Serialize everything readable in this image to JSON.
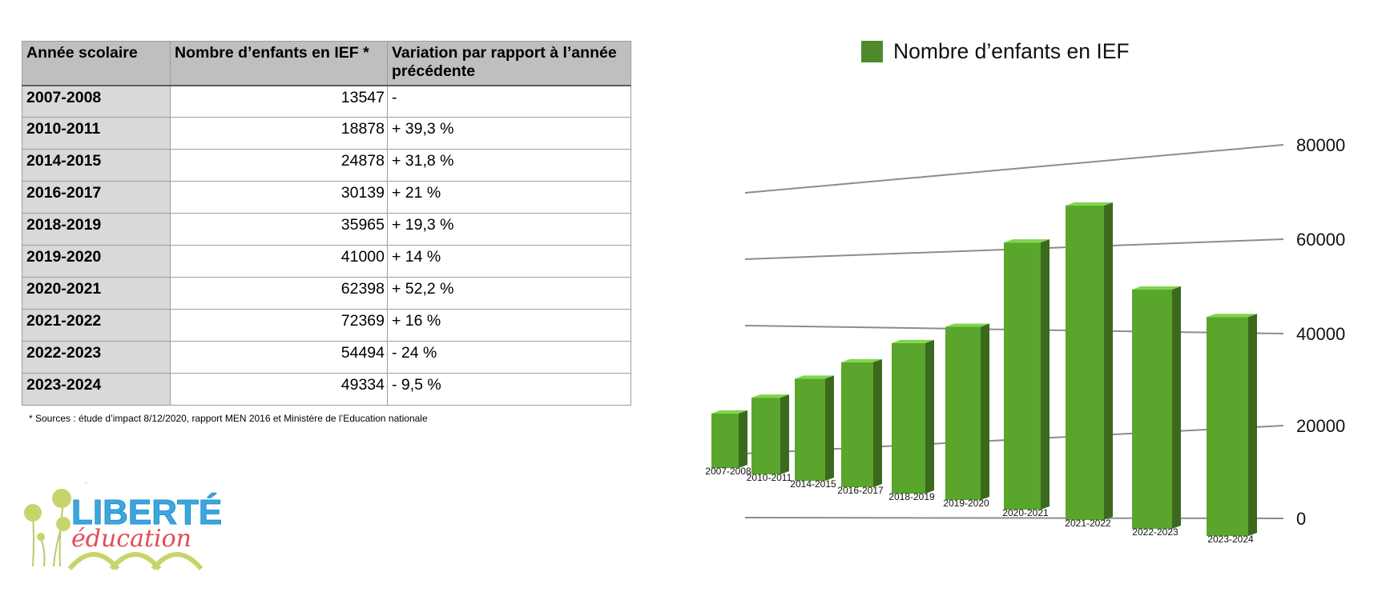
{
  "table": {
    "headers": [
      "Année scolaire",
      "Nombre d’enfants en IEF *",
      "Variation par rapport à l’année précédente"
    ],
    "rows": [
      {
        "year": "2007-2008",
        "count": "13547",
        "variation": "-"
      },
      {
        "year": "2010-2011",
        "count": "18878",
        "variation": "+ 39,3 %"
      },
      {
        "year": "2014-2015",
        "count": "24878",
        "variation": "+ 31,8 %"
      },
      {
        "year": "2016-2017",
        "count": "30139",
        "variation": "+ 21 %"
      },
      {
        "year": "2018-2019",
        "count": "35965",
        "variation": "+ 19,3 %"
      },
      {
        "year": "2019-2020",
        "count": "41000",
        "variation": "+ 14 %"
      },
      {
        "year": "2020-2021",
        "count": "62398",
        "variation": "+ 52,2 %"
      },
      {
        "year": "2021-2022",
        "count": "72369",
        "variation": "+ 16 %"
      },
      {
        "year": "2022-2023",
        "count": "54494",
        "variation": "- 24 %"
      },
      {
        "year": "2023-2024",
        "count": "49334",
        "variation": "- 9,5 %"
      }
    ],
    "sources_note": "* Sources : étude d’impact 8/12/2020, rapport MEN 2016 et Ministère de l’Education nationale"
  },
  "logo": {
    "line1": "LIBERTÉ",
    "line2": "éducation"
  },
  "chart_data": {
    "type": "bar",
    "categories": [
      "2007-2008",
      "2010-2011",
      "2014-2015",
      "2016-2017",
      "2018-2019",
      "2019-2020",
      "2020-2021",
      "2021-2022",
      "2022-2023",
      "2023-2024"
    ],
    "series": [
      {
        "name": "Nombre d’enfants en IEF",
        "values": [
          13547,
          18878,
          24878,
          30139,
          35965,
          41000,
          62398,
          72369,
          54494,
          49334
        ]
      }
    ],
    "y_ticks": [
      "0",
      "20000",
      "40000",
      "60000",
      "80000"
    ],
    "ylim": [
      0,
      80000
    ],
    "grid": true,
    "legend_position": "top",
    "style": "3d",
    "colors": {
      "bar_front": "#5aa62c",
      "bar_side": "#3b6a1f",
      "bar_top": "#7fd64a",
      "legend": "#4f8a2a",
      "grid": "#8c8c8c"
    }
  }
}
